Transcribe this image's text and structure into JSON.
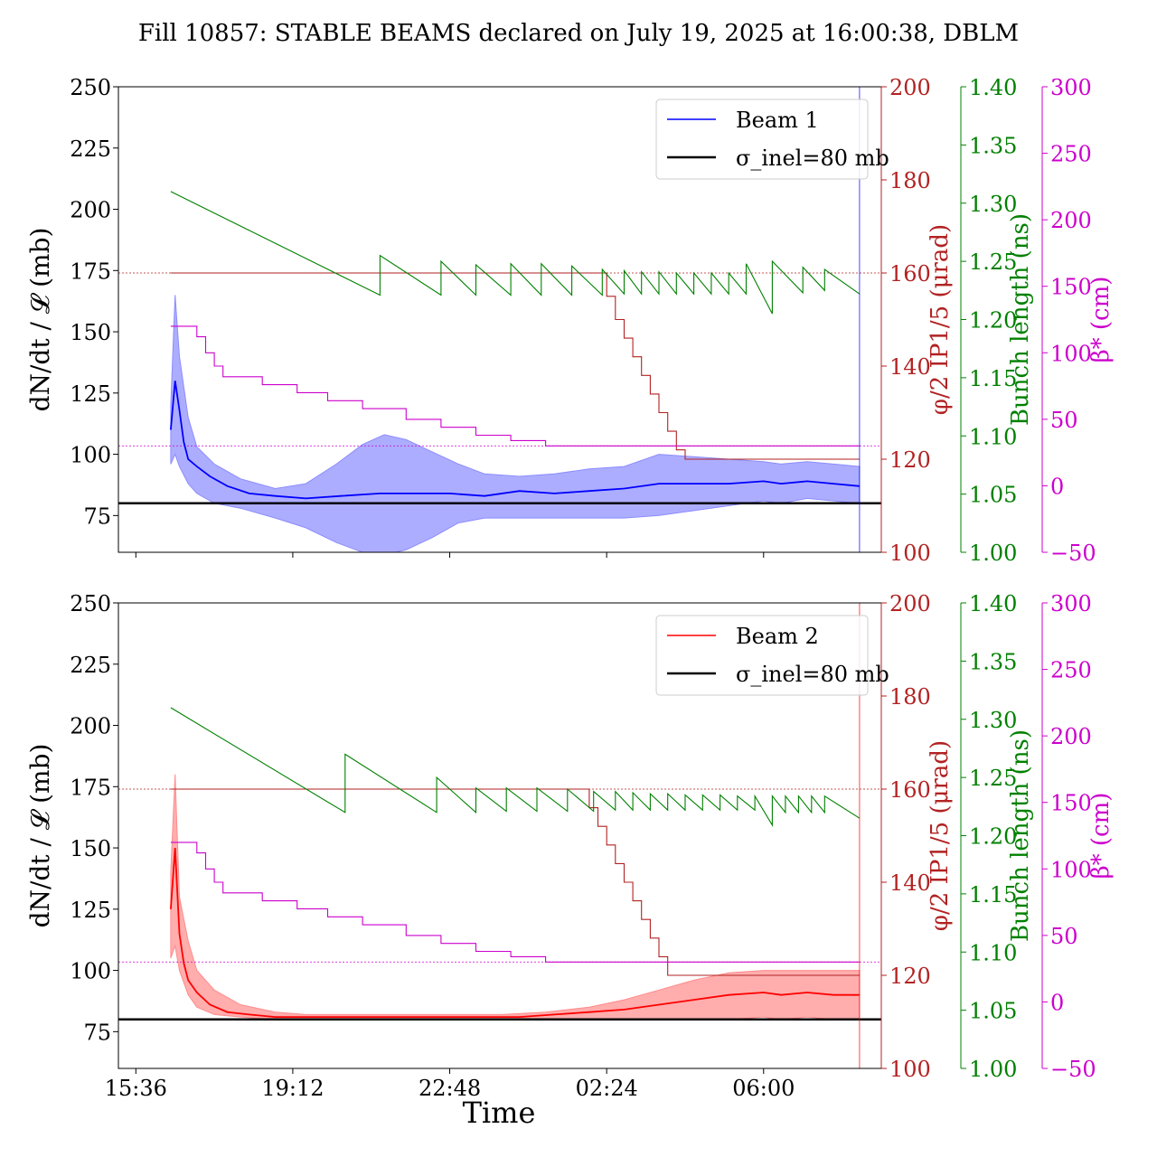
{
  "figure": {
    "title": "Fill 10857: STABLE BEAMS declared on July 19, 2025 at 16:00:38, DBLM",
    "xlabel": "Time",
    "colors": {
      "beam1": "#0000ff",
      "beam2": "#ff0000",
      "axis_crossing": "#b22222",
      "bunch_length": "#008000",
      "beta_star": "#cc00cc",
      "reference": "#000000"
    }
  },
  "chart_data": [
    {
      "type": "line",
      "panel": "top",
      "title": "",
      "xlabel": "",
      "x_ticks": [
        "15:36",
        "19:12",
        "22:48",
        "02:24",
        "06:00"
      ],
      "x_tick_hours": [
        15.6,
        19.2,
        22.8,
        26.4,
        30.0
      ],
      "xlim_hours": [
        15.2,
        32.7
      ],
      "legend": {
        "position": "top-right",
        "entries": [
          "Beam 1",
          "σ_inel=80 mb"
        ]
      },
      "left_axis": {
        "label": "dN/dt / 𝓛 (mb)",
        "ylim": [
          60,
          250
        ],
        "ticks": [
          75,
          100,
          125,
          150,
          175,
          200,
          225,
          250
        ]
      },
      "right_axes": [
        {
          "key": "xing",
          "label": "φ/2 IP1/5 (μrad)",
          "ylim": [
            100,
            200
          ],
          "ticks": [
            100,
            120,
            140,
            160,
            180,
            200
          ],
          "color": "#b22222"
        },
        {
          "key": "bl",
          "label": "Bunch length (ns)",
          "ylim": [
            1.0,
            1.4
          ],
          "ticks": [
            "1.00",
            "1.05",
            "1.10",
            "1.15",
            "1.20",
            "1.25",
            "1.30",
            "1.35",
            "1.40"
          ],
          "color": "#008000"
        },
        {
          "key": "beta",
          "label": "β* (cm)",
          "ylim": [
            -50,
            300
          ],
          "ticks": [
            -50,
            0,
            50,
            100,
            150,
            200,
            250,
            300
          ],
          "color": "#cc00cc"
        }
      ],
      "series": [
        {
          "name": "Beam 1",
          "axis": "left",
          "style": "main",
          "color": "#0000ff",
          "x": [
            16.4,
            16.5,
            16.6,
            16.7,
            16.8,
            17.0,
            17.3,
            17.7,
            18.2,
            18.8,
            19.5,
            20.3,
            21.2,
            22.0,
            22.8,
            23.6,
            24.4,
            25.2,
            26.0,
            26.8,
            27.6,
            28.4,
            29.2,
            30.0,
            30.4,
            31.0,
            31.6,
            32.2
          ],
          "y": [
            110,
            130,
            118,
            105,
            98,
            95,
            91,
            87,
            84,
            83,
            82,
            83,
            84,
            84,
            84,
            83,
            85,
            84,
            85,
            86,
            88,
            88,
            88,
            89,
            88,
            89,
            88,
            87
          ]
        },
        {
          "name": "",
          "axis": "left",
          "style": "band-upper",
          "color": "#0000ff",
          "x": [
            16.4,
            16.5,
            16.6,
            16.8,
            17.0,
            17.4,
            18.0,
            18.8,
            19.5,
            20.2,
            20.8,
            21.3,
            21.8,
            22.4,
            23.0,
            23.6,
            24.4,
            25.2,
            26.0,
            26.8,
            27.6,
            28.4,
            29.2,
            30.0,
            30.4,
            31.0,
            31.6,
            32.2
          ],
          "y": [
            120,
            165,
            140,
            115,
            103,
            96,
            90,
            86,
            88,
            96,
            104,
            108,
            106,
            101,
            96,
            92,
            91,
            92,
            94,
            95,
            100,
            99,
            98,
            97,
            96,
            97,
            96,
            95
          ]
        },
        {
          "name": "",
          "axis": "left",
          "style": "band-lower",
          "color": "#0000ff",
          "x": [
            16.4,
            16.5,
            16.6,
            16.8,
            17.0,
            17.4,
            18.0,
            18.8,
            19.5,
            20.2,
            20.8,
            21.3,
            21.8,
            22.4,
            23.0,
            23.6,
            24.4,
            25.2,
            26.0,
            26.8,
            27.6,
            28.4,
            29.2,
            30.0,
            30.4,
            31.0,
            31.6,
            32.2
          ],
          "y": [
            96,
            100,
            95,
            88,
            84,
            80,
            78,
            74,
            70,
            64,
            60,
            59,
            61,
            66,
            72,
            74,
            74,
            74,
            74,
            74,
            75,
            77,
            79,
            81,
            80,
            82,
            81,
            80
          ]
        },
        {
          "name": "",
          "axis": "xing",
          "style": "step",
          "color": "#b22222",
          "x": [
            16.4,
            26.2,
            26.4,
            26.6,
            26.8,
            27.0,
            27.2,
            27.4,
            27.6,
            27.8,
            28.0,
            28.2,
            32.2
          ],
          "y": [
            160,
            160,
            155,
            150,
            146,
            142,
            138,
            134,
            130,
            126,
            122,
            120,
            120
          ]
        },
        {
          "name": "",
          "axis": "beta",
          "style": "step",
          "color": "#cc00cc",
          "x": [
            16.4,
            16.9,
            17.0,
            17.2,
            17.4,
            17.6,
            18.5,
            19.3,
            20.0,
            20.8,
            21.8,
            22.6,
            23.4,
            24.2,
            25.0,
            32.2
          ],
          "y": [
            120,
            120,
            112,
            100,
            90,
            82,
            76,
            70,
            64,
            58,
            50,
            44,
            38,
            34,
            30,
            30
          ]
        },
        {
          "name": "",
          "axis": "bl",
          "style": "sawtooth",
          "color": "#008000",
          "x": [
            16.4,
            21.2,
            21.2,
            22.6,
            22.6,
            23.4,
            23.4,
            24.2,
            24.2,
            24.9,
            24.9,
            25.6,
            25.6,
            26.3,
            26.3,
            26.8,
            26.8,
            27.2,
            27.2,
            27.6,
            27.6,
            28.0,
            28.0,
            28.4,
            28.4,
            28.8,
            28.8,
            29.2,
            29.2,
            29.6,
            29.6,
            30.2,
            30.2,
            30.9,
            30.9,
            31.4,
            31.4,
            32.2
          ],
          "y": [
            1.31,
            1.221,
            1.255,
            1.221,
            1.25,
            1.221,
            1.247,
            1.221,
            1.248,
            1.221,
            1.248,
            1.221,
            1.246,
            1.221,
            1.243,
            1.222,
            1.242,
            1.222,
            1.241,
            1.222,
            1.241,
            1.222,
            1.24,
            1.222,
            1.24,
            1.222,
            1.24,
            1.222,
            1.24,
            1.222,
            1.248,
            1.205,
            1.25,
            1.223,
            1.245,
            1.225,
            1.243,
            1.222
          ]
        }
      ],
      "reference_lines": [
        {
          "axis": "left",
          "y": 80,
          "style": "solid",
          "color": "#000000"
        },
        {
          "axis": "xing",
          "y": 160,
          "style": "dotted",
          "color": "#b22222"
        },
        {
          "axis": "beta",
          "y": 30,
          "style": "dotted",
          "color": "#cc00cc"
        }
      ],
      "end_marker_hour": 32.2
    },
    {
      "type": "line",
      "panel": "bottom",
      "title": "",
      "xlabel": "Time",
      "x_ticks": [
        "15:36",
        "19:12",
        "22:48",
        "02:24",
        "06:00"
      ],
      "x_tick_hours": [
        15.6,
        19.2,
        22.8,
        26.4,
        30.0
      ],
      "xlim_hours": [
        15.2,
        32.7
      ],
      "legend": {
        "position": "top-right",
        "entries": [
          "Beam 2",
          "σ_inel=80 mb"
        ]
      },
      "left_axis": {
        "label": "dN/dt / 𝓛 (mb)",
        "ylim": [
          60,
          250
        ],
        "ticks": [
          75,
          100,
          125,
          150,
          175,
          200,
          225,
          250
        ]
      },
      "right_axes": [
        {
          "key": "xing",
          "label": "φ/2 IP1/5 (μrad)",
          "ylim": [
            100,
            200
          ],
          "ticks": [
            100,
            120,
            140,
            160,
            180,
            200
          ],
          "color": "#b22222"
        },
        {
          "key": "bl",
          "label": "Bunch length (ns)",
          "ylim": [
            1.0,
            1.4
          ],
          "ticks": [
            "1.00",
            "1.05",
            "1.10",
            "1.15",
            "1.20",
            "1.25",
            "1.30",
            "1.35",
            "1.40"
          ],
          "color": "#008000"
        },
        {
          "key": "beta",
          "label": "β* (cm)",
          "ylim": [
            -50,
            300
          ],
          "ticks": [
            -50,
            0,
            50,
            100,
            150,
            200,
            250,
            300
          ],
          "color": "#cc00cc"
        }
      ],
      "series": [
        {
          "name": "Beam 2",
          "axis": "left",
          "style": "main",
          "color": "#ff0000",
          "x": [
            16.4,
            16.5,
            16.6,
            16.7,
            16.8,
            17.0,
            17.3,
            17.7,
            18.2,
            18.8,
            19.5,
            20.3,
            21.2,
            22.0,
            22.8,
            23.6,
            24.4,
            25.2,
            26.0,
            26.8,
            27.6,
            28.4,
            29.2,
            30.0,
            30.4,
            31.0,
            31.6,
            32.2
          ],
          "y": [
            125,
            150,
            115,
            103,
            96,
            91,
            86,
            83,
            82,
            81,
            81,
            81,
            81,
            81,
            81,
            81,
            81,
            82,
            83,
            84,
            86,
            88,
            90,
            91,
            90,
            91,
            90,
            90
          ]
        },
        {
          "name": "",
          "axis": "left",
          "style": "band-upper",
          "color": "#ff0000",
          "x": [
            16.4,
            16.5,
            16.6,
            16.8,
            17.0,
            17.4,
            18.0,
            18.8,
            19.5,
            20.2,
            21.0,
            22.0,
            23.0,
            24.0,
            25.0,
            26.0,
            26.8,
            27.6,
            28.4,
            29.2,
            30.0,
            30.4,
            31.0,
            31.6,
            32.2
          ],
          "y": [
            140,
            180,
            130,
            112,
            100,
            92,
            86,
            83,
            82,
            82,
            82,
            82,
            82,
            82,
            83,
            85,
            88,
            92,
            96,
            99,
            100,
            100,
            100,
            100,
            100
          ]
        },
        {
          "name": "",
          "axis": "left",
          "style": "band-lower",
          "color": "#ff0000",
          "x": [
            16.4,
            16.5,
            16.6,
            16.8,
            17.0,
            17.4,
            18.0,
            18.8,
            19.5,
            20.2,
            21.0,
            22.0,
            23.0,
            24.0,
            25.0,
            26.0,
            26.8,
            27.6,
            28.4,
            29.2,
            30.0,
            30.4,
            31.0,
            31.6,
            32.2
          ],
          "y": [
            105,
            110,
            100,
            90,
            85,
            82,
            81,
            80,
            80,
            80,
            80,
            80,
            80,
            80,
            80,
            80,
            80,
            80,
            80,
            80,
            81,
            80,
            81,
            80,
            80
          ]
        },
        {
          "name": "",
          "axis": "xing",
          "style": "step",
          "color": "#b22222",
          "x": [
            16.4,
            25.8,
            26.0,
            26.2,
            26.4,
            26.6,
            26.8,
            27.0,
            27.2,
            27.4,
            27.6,
            27.8,
            32.2
          ],
          "y": [
            160,
            160,
            156,
            152,
            148,
            144,
            140,
            136,
            132,
            128,
            124,
            120,
            120
          ]
        },
        {
          "name": "",
          "axis": "beta",
          "style": "step",
          "color": "#cc00cc",
          "x": [
            16.4,
            16.9,
            17.0,
            17.2,
            17.4,
            17.6,
            18.5,
            19.3,
            20.0,
            20.8,
            21.8,
            22.6,
            23.4,
            24.2,
            25.0,
            32.2
          ],
          "y": [
            120,
            120,
            112,
            100,
            90,
            82,
            76,
            70,
            64,
            58,
            50,
            44,
            38,
            34,
            30,
            30
          ]
        },
        {
          "name": "",
          "axis": "bl",
          "style": "sawtooth",
          "color": "#008000",
          "x": [
            16.4,
            20.4,
            20.4,
            22.5,
            22.5,
            23.4,
            23.4,
            24.1,
            24.1,
            24.8,
            24.8,
            25.5,
            25.5,
            26.1,
            26.1,
            26.6,
            26.6,
            27.0,
            27.0,
            27.4,
            27.4,
            27.8,
            27.8,
            28.2,
            28.2,
            28.6,
            28.6,
            29.0,
            29.0,
            29.4,
            29.4,
            29.8,
            29.8,
            30.2,
            30.2,
            30.5,
            30.5,
            30.8,
            30.8,
            31.1,
            31.1,
            31.4,
            31.4,
            32.2
          ],
          "y": [
            1.31,
            1.22,
            1.27,
            1.22,
            1.25,
            1.22,
            1.241,
            1.221,
            1.241,
            1.221,
            1.241,
            1.221,
            1.24,
            1.221,
            1.238,
            1.222,
            1.238,
            1.222,
            1.237,
            1.222,
            1.236,
            1.222,
            1.236,
            1.222,
            1.235,
            1.222,
            1.235,
            1.222,
            1.235,
            1.222,
            1.234,
            1.222,
            1.234,
            1.209,
            1.234,
            1.22,
            1.234,
            1.22,
            1.234,
            1.22,
            1.234,
            1.22,
            1.234,
            1.215
          ]
        }
      ],
      "reference_lines": [
        {
          "axis": "left",
          "y": 80,
          "style": "solid",
          "color": "#000000"
        },
        {
          "axis": "xing",
          "y": 160,
          "style": "dotted",
          "color": "#b22222"
        },
        {
          "axis": "beta",
          "y": 30,
          "style": "dotted",
          "color": "#cc00cc"
        }
      ],
      "end_marker_hour": 32.2
    }
  ]
}
